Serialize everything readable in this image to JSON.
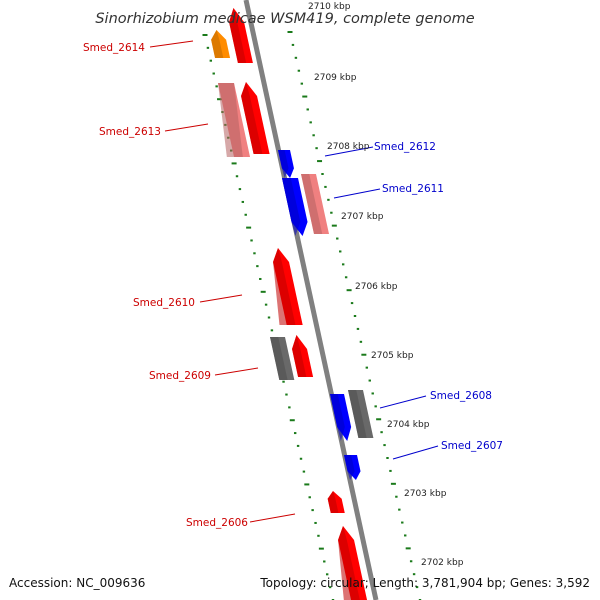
{
  "title": "Sinorhizobium medicae WSM419, complete genome",
  "footer": {
    "accession": "Accession: NC_009636",
    "stats": "Topology: circular; Length: 3,781,904 bp; Genes: 3,592"
  },
  "colors": {
    "backbone": "#808080",
    "tick": "#1a7a1a",
    "red": "#ff0000",
    "pink": "#f08080",
    "orange": "#ff8c00",
    "gray": "#696969",
    "blue": "#0000ff",
    "label_left": "#cc0000",
    "label_right": "#0000cc"
  },
  "kbp_labels": [
    {
      "text": "2710 kbp"
    },
    {
      "text": "2709 kbp"
    },
    {
      "text": "2708 kbp"
    },
    {
      "text": "2707 kbp"
    },
    {
      "text": "2706 kbp"
    },
    {
      "text": "2705 kbp"
    },
    {
      "text": "2704 kbp"
    },
    {
      "text": "2703 kbp"
    },
    {
      "text": "2702 kbp"
    }
  ],
  "gene_labels": [
    {
      "text": "Smed_2614",
      "side": "left"
    },
    {
      "text": "Smed_2613",
      "side": "left"
    },
    {
      "text": "Smed_2612",
      "side": "right"
    },
    {
      "text": "Smed_2611",
      "side": "right"
    },
    {
      "text": "Smed_2610",
      "side": "left"
    },
    {
      "text": "Smed_2609",
      "side": "left"
    },
    {
      "text": "Smed_2608",
      "side": "right"
    },
    {
      "text": "Smed_2607",
      "side": "right"
    },
    {
      "text": "Smed_2606",
      "side": "left"
    }
  ]
}
